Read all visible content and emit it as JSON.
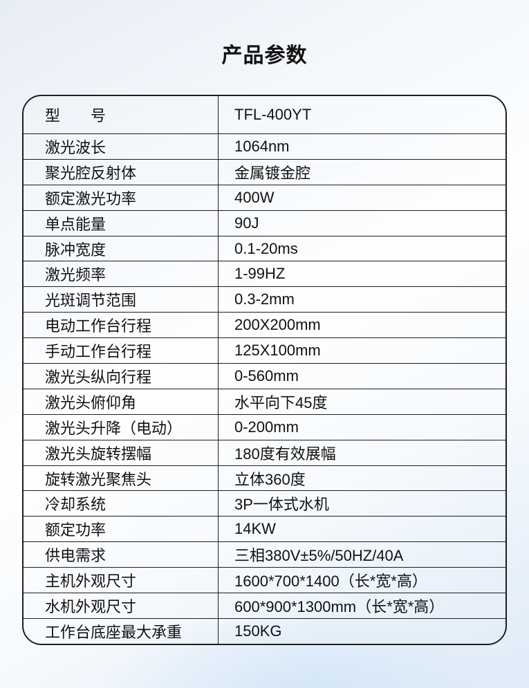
{
  "page": {
    "title": "产品参数"
  },
  "colors": {
    "line": "#1e1e1e",
    "text": "#111111",
    "background_top": "#e8edf5",
    "background_bottom": "#e0ebf8"
  },
  "table": {
    "rows": [
      {
        "label": "型　　号",
        "value": "TFL-400YT"
      },
      {
        "label": "激光波长",
        "value": "1064nm"
      },
      {
        "label": "聚光腔反射体",
        "value": "金属镀金腔"
      },
      {
        "label": "额定激光功率",
        "value": "400W"
      },
      {
        "label": "单点能量",
        "value": "90J"
      },
      {
        "label": "脉冲宽度",
        "value": "0.1-20ms"
      },
      {
        "label": "激光频率",
        "value": "1-99HZ"
      },
      {
        "label": "光斑调节范围",
        "value": "0.3-2mm"
      },
      {
        "label": "电动工作台行程",
        "value": "200X200mm"
      },
      {
        "label": "手动工作台行程",
        "value": "125X100mm"
      },
      {
        "label": "激光头纵向行程",
        "value": "0-560mm"
      },
      {
        "label": "激光头俯仰角",
        "value": "水平向下45度"
      },
      {
        "label": "激光头升降（电动）",
        "value": "0-200mm"
      },
      {
        "label": "激光头旋转摆幅",
        "value": "180度有效展幅"
      },
      {
        "label": "旋转激光聚焦头",
        "value": "立体360度"
      },
      {
        "label": "冷却系统",
        "value": "3P一体式水机"
      },
      {
        "label": "额定功率",
        "value": "14KW"
      },
      {
        "label": "供电需求",
        "value": "三相380V±5%/50HZ/40A"
      },
      {
        "label": "主机外观尺寸",
        "value": "1600*700*1400（长*宽*高）"
      },
      {
        "label": "水机外观尺寸",
        "value": "600*900*1300mm（长*宽*高）"
      },
      {
        "label": "工作台底座最大承重",
        "value": "150KG"
      }
    ]
  }
}
